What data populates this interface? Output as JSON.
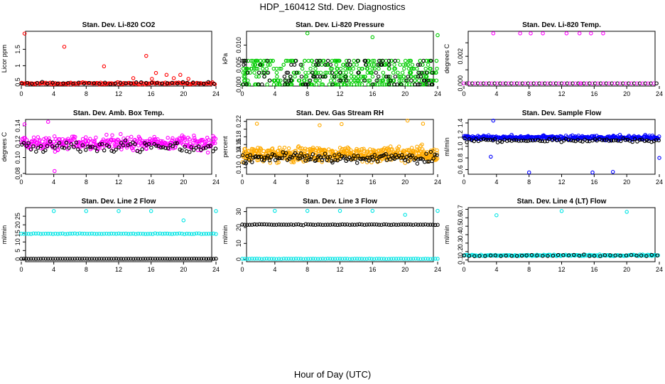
{
  "title": "HDP_160412  Std. Dev. Diagnostics",
  "xlabel": "Hour of Day (UTC)",
  "colors": {
    "ref": "#000000"
  },
  "chart_data": [
    {
      "type": "scatter",
      "title": "Stan. Dev. Li-820 CO2",
      "ylabel": "Licor ppm",
      "xlim": [
        0,
        24
      ],
      "ylim": [
        0.38,
        2.05
      ],
      "xticks": [
        0,
        4,
        8,
        12,
        16,
        20,
        24
      ],
      "yticks": [
        0.5,
        1.0,
        1.5
      ],
      "ytick_labels": [
        "0.5",
        "1",
        "1.5"
      ],
      "color": "#ff0000",
      "pattern": {
        "kind": "cloud",
        "n": 150,
        "base": 0.46,
        "spread": 0.04,
        "ref_offset": 0.01,
        "ref_spread": 0.04
      },
      "outliers": [
        [
          0.4,
          1.98
        ],
        [
          5.3,
          1.58
        ],
        [
          10.2,
          0.98
        ],
        [
          15.4,
          1.3
        ],
        [
          13.8,
          0.62
        ],
        [
          16.6,
          0.78
        ],
        [
          17.9,
          0.72
        ],
        [
          18.8,
          0.62
        ],
        [
          19.6,
          0.72
        ],
        [
          20.6,
          0.6
        ],
        [
          16.1,
          0.6
        ]
      ]
    },
    {
      "type": "scatter",
      "title": "Stan. Dev. Li-820 Pressure",
      "ylabel": "kPa",
      "xlim": [
        0,
        24
      ],
      "ylim": [
        -0.0004,
        0.0135
      ],
      "xticks": [
        0,
        4,
        8,
        12,
        16,
        20,
        24
      ],
      "yticks": [
        0.0,
        0.005,
        0.01
      ],
      "ytick_labels": [
        "0.000",
        "0.005",
        "0.010"
      ],
      "color": "#00cc00",
      "pattern": {
        "kind": "band",
        "n": 420,
        "values": [
          0,
          0.001,
          0.002,
          0.003,
          0.004,
          0.005,
          0.006
        ],
        "ref_values": [
          0,
          0.001,
          0.002,
          0.003,
          0.005,
          0.006
        ]
      },
      "outliers": [
        [
          8.0,
          0.013
        ],
        [
          16.0,
          0.012
        ],
        [
          24.0,
          0.0125
        ]
      ]
    },
    {
      "type": "scatter",
      "title": "Stan. Dev. Li-820 Temp.",
      "ylabel": "degrees C",
      "xlim": [
        0,
        24
      ],
      "ylim": [
        -0.0002,
        0.00385
      ],
      "xticks": [
        0,
        4,
        8,
        12,
        16,
        20,
        24
      ],
      "yticks": [
        0.0,
        0.001,
        0.002,
        0.003
      ],
      "ytick_labels": [
        "0.000",
        "",
        "0.002",
        ""
      ],
      "color": "#ff00ff",
      "pattern": {
        "kind": "flat",
        "n": 70,
        "value": 0.0
      },
      "outliers": [
        [
          3.6,
          0.0037
        ],
        [
          6.9,
          0.0037
        ],
        [
          8.2,
          0.0037
        ],
        [
          9.7,
          0.0037
        ],
        [
          12.6,
          0.0037
        ],
        [
          14.2,
          0.0037
        ],
        [
          15.6,
          0.0037
        ],
        [
          17.1,
          0.0037
        ],
        [
          14.3,
          0.0
        ]
      ]
    },
    {
      "type": "scatter",
      "title": "Stan. Dev. Amb. Box Temp.",
      "ylabel": "degrees C",
      "xlim": [
        0,
        24
      ],
      "ylim": [
        0.079,
        0.148
      ],
      "xticks": [
        0,
        4,
        8,
        12,
        16,
        20,
        24
      ],
      "yticks": [
        0.08,
        0.1,
        0.12,
        0.14
      ],
      "ytick_labels": [
        "0.08",
        "0.10",
        "0.12",
        "0.14"
      ],
      "color": "#ff00ff",
      "pattern": {
        "kind": "cloud",
        "n": 330,
        "base": 0.118,
        "spread": 0.013,
        "ref_offset": -0.004,
        "ref_spread": 0.01
      },
      "outliers": [
        [
          4.1,
          0.083
        ],
        [
          3.3,
          0.145
        ],
        [
          0.4,
          0.142
        ]
      ]
    },
    {
      "type": "scatter",
      "title": "Stan. Dev. Gas Stream RH",
      "ylabel": "percent",
      "xlim": [
        0,
        24
      ],
      "ylim": [
        0.083,
        0.225
      ],
      "xticks": [
        0,
        4,
        8,
        12,
        16,
        20,
        24
      ],
      "yticks": [
        0.1,
        0.12,
        0.14,
        0.16,
        0.18,
        0.2,
        0.22
      ],
      "ytick_labels": [
        "0.10",
        "",
        "0.14",
        "0.16",
        "0.18",
        "",
        "0.22"
      ],
      "color": "#ffaa00",
      "pattern": {
        "kind": "cloud",
        "n": 520,
        "base": 0.135,
        "spread": 0.028,
        "ref_offset": -0.01,
        "ref_spread": 0.02
      },
      "outliers": [
        [
          1.8,
          0.214
        ],
        [
          9.5,
          0.21
        ],
        [
          12.2,
          0.213
        ],
        [
          20.3,
          0.222
        ],
        [
          22.2,
          0.214
        ]
      ]
    },
    {
      "type": "scatter",
      "title": "Stan. Dev. Sample Flow",
      "ylabel": "ml/min",
      "xlim": [
        0,
        24
      ],
      "ylim": [
        0.52,
        1.46
      ],
      "xticks": [
        0,
        4,
        8,
        12,
        16,
        20,
        24
      ],
      "yticks": [
        0.6,
        0.8,
        1.0,
        1.2,
        1.4
      ],
      "ytick_labels": [
        "0.6",
        "0.8",
        "1.0",
        "1.2",
        "1.4"
      ],
      "color": "#0000ff",
      "pattern": {
        "kind": "cloud",
        "n": 330,
        "base": 1.15,
        "spread": 0.055,
        "ref_offset": -0.05,
        "ref_spread": 0.05
      },
      "outliers": [
        [
          3.3,
          0.82
        ],
        [
          8.0,
          0.55
        ],
        [
          15.8,
          0.55
        ],
        [
          18.3,
          0.56
        ],
        [
          3.6,
          1.44
        ],
        [
          24.0,
          0.8
        ]
      ]
    },
    {
      "type": "scatter",
      "title": "Stan. Dev. Line 2 Flow",
      "ylabel": "ml/min",
      "xlim": [
        0,
        24
      ],
      "ylim": [
        -1.5,
        30
      ],
      "xticks": [
        0,
        4,
        8,
        12,
        16,
        20,
        24
      ],
      "yticks": [
        0,
        5,
        10,
        15,
        20,
        25
      ],
      "ytick_labels": [
        "0",
        "5",
        "10",
        "15",
        "20",
        "25"
      ],
      "color": "#00e5e5",
      "pattern": {
        "kind": "lines",
        "n": 80,
        "main": 14.8,
        "main_spread": 0.3,
        "ref": 0.2,
        "ref_spread": 0.05,
        "ref_color_main": false
      },
      "outliers": [
        [
          4.0,
          28.0
        ],
        [
          8.0,
          28.0
        ],
        [
          12.0,
          28.0
        ],
        [
          16.0,
          28.0
        ],
        [
          20.0,
          22.6
        ],
        [
          24.0,
          28.0
        ]
      ]
    },
    {
      "type": "scatter",
      "title": "Stan. Dev. Line 3 Flow",
      "ylabel": "ml/min",
      "xlim": [
        0,
        24
      ],
      "ylim": [
        -1.5,
        32.5
      ],
      "xticks": [
        0,
        4,
        8,
        12,
        16,
        20,
        24
      ],
      "yticks": [
        0,
        10,
        20,
        30
      ],
      "ytick_labels": [
        "0",
        "10",
        "20",
        "30"
      ],
      "color": "#00e5e5",
      "pattern": {
        "kind": "lines",
        "n": 80,
        "main": 0.3,
        "main_spread": 0.15,
        "ref": 21.8,
        "ref_spread": 0.4,
        "ref_color_main": true
      },
      "outliers": [
        [
          4.0,
          30.5
        ],
        [
          8.0,
          30.5
        ],
        [
          12.0,
          30.5
        ],
        [
          16.0,
          30.5
        ],
        [
          20.0,
          28.0
        ],
        [
          24.0,
          30.5
        ]
      ]
    },
    {
      "type": "scatter",
      "title": "Stan. Dev. Line 4 (LT) Flow",
      "ylabel": "ml/min",
      "xlim": [
        0,
        24
      ],
      "ylim": [
        0.08,
        0.72
      ],
      "xticks": [
        0,
        4,
        8,
        12,
        16,
        20,
        24
      ],
      "yticks": [
        0.1,
        0.2,
        0.3,
        0.4,
        0.5,
        0.6,
        0.7
      ],
      "ytick_labels": [
        "0.1",
        "0.2",
        "0.3",
        "0.4",
        "0.5",
        "0.6",
        "0.7"
      ],
      "color": "#00e5e5",
      "pattern": {
        "kind": "cloud",
        "n": 150,
        "base": 0.155,
        "spread": 0.012,
        "ref_offset": -0.002,
        "ref_spread": 0.012
      },
      "outliers": [
        [
          4.0,
          0.63
        ],
        [
          12.0,
          0.68
        ],
        [
          20.0,
          0.67
        ]
      ]
    }
  ]
}
